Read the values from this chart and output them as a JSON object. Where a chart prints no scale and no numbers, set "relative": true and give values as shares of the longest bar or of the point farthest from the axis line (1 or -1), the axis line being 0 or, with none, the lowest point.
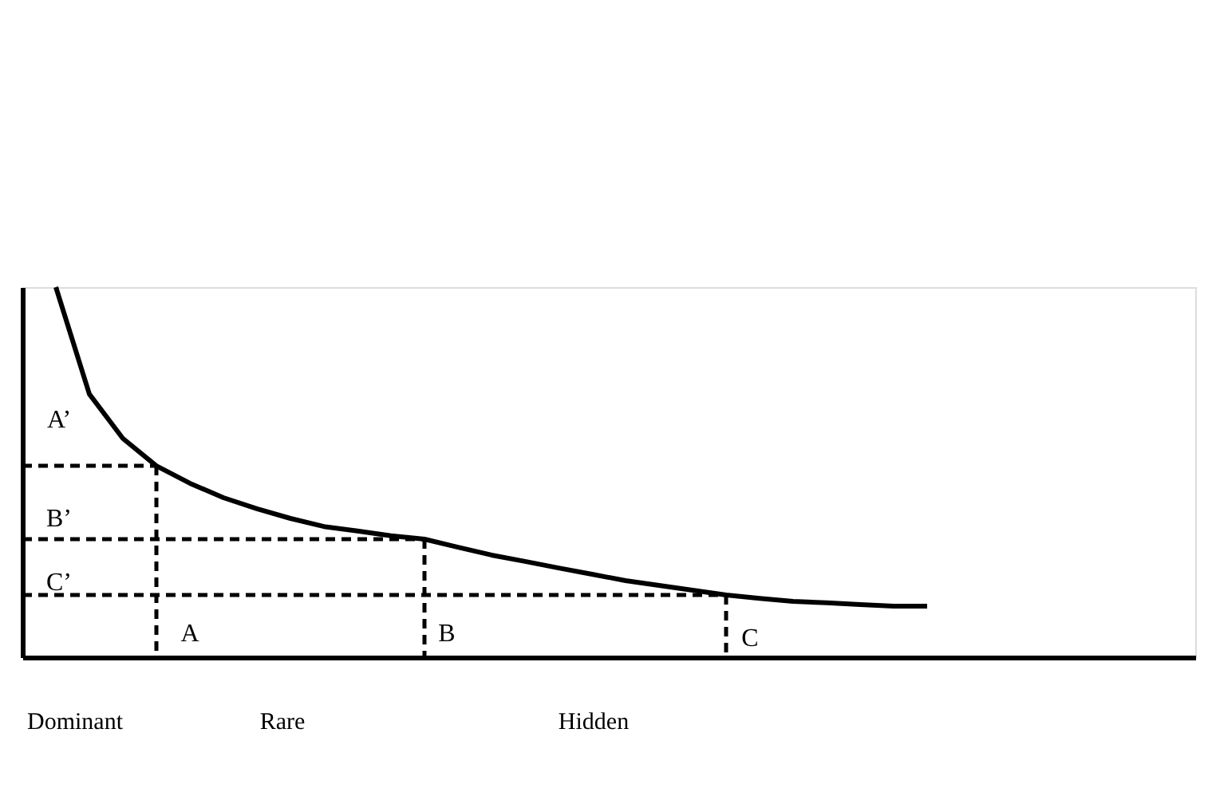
{
  "chart_data": {
    "type": "line",
    "relative": true,
    "marker": "none",
    "categories": [
      null,
      null,
      null,
      null,
      null,
      null,
      null,
      null,
      null,
      null,
      null,
      null,
      null,
      null,
      null,
      null,
      null,
      null,
      null,
      null,
      null,
      null,
      null,
      null,
      null,
      null,
      null,
      null,
      null,
      null,
      null,
      null,
      null,
      null,
      null,
      null
    ],
    "series": [
      {
        "color": "#000000",
        "line_style": "solid",
        "values": [
          null,
          1,
          0.711,
          0.591,
          0.517,
          0.47,
          0.431,
          0.401,
          0.375,
          0.353,
          0.341,
          0.328,
          0.319,
          0.297,
          0.276,
          0.259,
          0.241,
          0.224,
          0.207,
          0.194,
          0.181,
          0.168,
          0.159,
          0.151,
          0.147,
          0.142,
          0.138,
          0.138,
          null,
          null,
          null,
          null,
          null,
          null,
          null,
          null
        ]
      },
      {
        "color": "#000000",
        "line_style": "dashed",
        "values": [
          0.517,
          0.517,
          0.517,
          0.517,
          0.517,
          null,
          null,
          null,
          null,
          null,
          null,
          null,
          null,
          null,
          null,
          null,
          null,
          null,
          null,
          null,
          null,
          null,
          null,
          null,
          null,
          null,
          null,
          null,
          null,
          null,
          null,
          null,
          null,
          null,
          null,
          null
        ]
      },
      {
        "color": "#000000",
        "line_style": "dashed",
        "values": [
          0.319,
          0.319,
          0.319,
          0.319,
          0.319,
          0.319,
          0.319,
          0.319,
          0.319,
          0.319,
          0.319,
          0.319,
          0.319,
          null,
          null,
          null,
          null,
          null,
          null,
          null,
          null,
          null,
          null,
          null,
          null,
          null,
          null,
          null,
          null,
          null,
          null,
          null,
          null,
          null,
          null,
          null
        ]
      },
      {
        "color": "#000000",
        "line_style": "dashed",
        "values": [
          0.168,
          0.168,
          0.168,
          0.168,
          0.168,
          0.168,
          0.168,
          0.168,
          0.168,
          0.168,
          0.168,
          0.168,
          0.168,
          0.168,
          0.168,
          0.168,
          0.168,
          0.168,
          0.168,
          0.168,
          0.168,
          0.168,
          null,
          null,
          null,
          null,
          null,
          null,
          null,
          null,
          null,
          null,
          null,
          null,
          null,
          null
        ]
      }
    ],
    "annotations": [
      "A’",
      "B’",
      "C’",
      "A",
      "B",
      "C",
      "Dominant",
      "Rare",
      "Hidden"
    ]
  }
}
